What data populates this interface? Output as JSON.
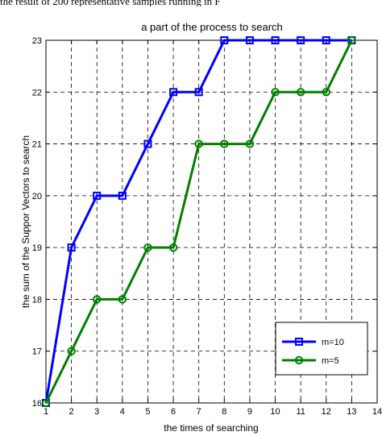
{
  "caption_snippet": "the result of 200 representative samples running in F",
  "chart_data": {
    "type": "line",
    "title": "a part of the process to search",
    "xlabel": "the times of searching",
    "ylabel": "the sum of the Suppor Vectors to search",
    "xlim": [
      1,
      14
    ],
    "ylim": [
      16,
      23
    ],
    "x_ticks": [
      "1",
      "2",
      "3",
      "4",
      "5",
      "6",
      "7",
      "8",
      "9",
      "10",
      "11",
      "12",
      "13",
      "14"
    ],
    "y_ticks": [
      "16",
      "17",
      "18",
      "19",
      "20",
      "21",
      "22",
      "23"
    ],
    "grid": true,
    "grid_style": "dashed",
    "legend_position": "lower-right",
    "x": [
      1,
      2,
      3,
      4,
      5,
      6,
      7,
      8,
      9,
      10,
      11,
      12,
      13
    ],
    "series": [
      {
        "name": "m=10",
        "color": "#0000ff",
        "marker": "square",
        "values": [
          16,
          19,
          20,
          20,
          21,
          22,
          22,
          23,
          23,
          23,
          23,
          23,
          23
        ]
      },
      {
        "name": "m=5",
        "color": "#007f00",
        "marker": "circle",
        "values": [
          16,
          17,
          18,
          18,
          19,
          19,
          21,
          21,
          21,
          22,
          22,
          22,
          23
        ]
      }
    ]
  }
}
